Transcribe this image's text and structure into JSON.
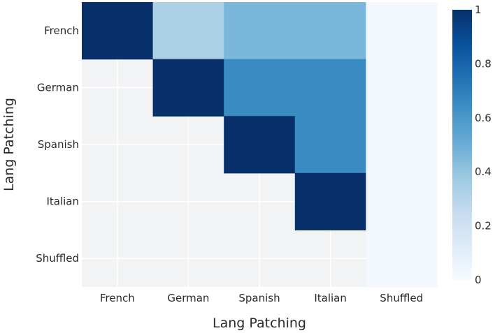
{
  "chart_data": {
    "type": "heatmap",
    "title": "",
    "xlabel": "Lang Patching",
    "ylabel": "Lang Patching",
    "x_categories": [
      "French",
      "German",
      "Spanish",
      "Italian",
      "Shuffled"
    ],
    "y_categories": [
      "French",
      "German",
      "Spanish",
      "Italian",
      "Shuffled"
    ],
    "values": [
      [
        1.0,
        0.33,
        0.46,
        0.46,
        0.02
      ],
      [
        null,
        1.0,
        0.65,
        0.65,
        0.02
      ],
      [
        null,
        null,
        1.0,
        0.65,
        0.02
      ],
      [
        null,
        null,
        null,
        1.0,
        0.02
      ],
      [
        null,
        null,
        null,
        null,
        0.02
      ]
    ],
    "colorscale": "Blues",
    "zmin": 0,
    "zmax": 1,
    "colorbar_ticks": [
      "0",
      "0.2",
      "0.4",
      "0.6",
      "0.8",
      "1"
    ],
    "colorbar_tick_values": [
      0,
      0.2,
      0.4,
      0.6,
      0.8,
      1
    ],
    "missing_color": "#f2f3f5",
    "grid_color": "#ffffff"
  }
}
